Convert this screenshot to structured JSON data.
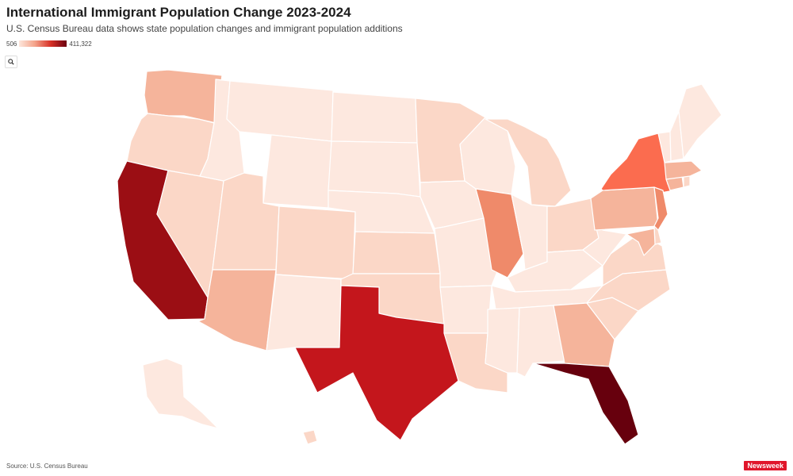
{
  "header": {
    "title": "International Immigrant Population Change 2023-2024",
    "subtitle": "U.S. Census Bureau data shows state population changes and immigrant population additions"
  },
  "legend": {
    "min_label": "506",
    "max_label": "411,322"
  },
  "controls": {
    "zoom_icon": "search-icon"
  },
  "colors": {
    "scale": [
      "#fde8df",
      "#fbd7c7",
      "#f5b49b",
      "#ef8a6a",
      "#fb6c4f",
      "#c4161c",
      "#9b0e14",
      "#67000d"
    ]
  },
  "map": {
    "states": [
      {
        "id": "WA",
        "level": 2
      },
      {
        "id": "OR",
        "level": 1
      },
      {
        "id": "CA",
        "level": 6
      },
      {
        "id": "NV",
        "level": 1
      },
      {
        "id": "ID",
        "level": 0
      },
      {
        "id": "MT",
        "level": 0
      },
      {
        "id": "WY",
        "level": 0
      },
      {
        "id": "UT",
        "level": 1
      },
      {
        "id": "AZ",
        "level": 2
      },
      {
        "id": "CO",
        "level": 1
      },
      {
        "id": "NM",
        "level": 0
      },
      {
        "id": "ND",
        "level": 0
      },
      {
        "id": "SD",
        "level": 0
      },
      {
        "id": "NE",
        "level": 0
      },
      {
        "id": "KS",
        "level": 1
      },
      {
        "id": "OK",
        "level": 1
      },
      {
        "id": "TX",
        "level": 5
      },
      {
        "id": "MN",
        "level": 1
      },
      {
        "id": "IA",
        "level": 0
      },
      {
        "id": "MO",
        "level": 0
      },
      {
        "id": "AR",
        "level": 0
      },
      {
        "id": "LA",
        "level": 1
      },
      {
        "id": "WI",
        "level": 0
      },
      {
        "id": "IL",
        "level": 3
      },
      {
        "id": "MI",
        "level": 1
      },
      {
        "id": "IN",
        "level": 0
      },
      {
        "id": "OH",
        "level": 1
      },
      {
        "id": "KY",
        "level": 0
      },
      {
        "id": "TN",
        "level": 0
      },
      {
        "id": "MS",
        "level": 0
      },
      {
        "id": "AL",
        "level": 0
      },
      {
        "id": "GA",
        "level": 2
      },
      {
        "id": "FL",
        "level": 7
      },
      {
        "id": "SC",
        "level": 1
      },
      {
        "id": "NC",
        "level": 1
      },
      {
        "id": "VA",
        "level": 1
      },
      {
        "id": "WV",
        "level": 0
      },
      {
        "id": "PA",
        "level": 2
      },
      {
        "id": "NY",
        "level": 4
      },
      {
        "id": "NJ",
        "level": 3
      },
      {
        "id": "DE",
        "level": 1
      },
      {
        "id": "MD",
        "level": 2
      },
      {
        "id": "CT",
        "level": 2
      },
      {
        "id": "RI",
        "level": 1
      },
      {
        "id": "MA",
        "level": 2
      },
      {
        "id": "VT",
        "level": 0
      },
      {
        "id": "NH",
        "level": 0
      },
      {
        "id": "ME",
        "level": 0
      },
      {
        "id": "AK",
        "level": 0
      },
      {
        "id": "HI",
        "level": 1
      }
    ]
  },
  "footer": {
    "source": "Source: U.S. Census Bureau",
    "brand": "Newsweek"
  }
}
